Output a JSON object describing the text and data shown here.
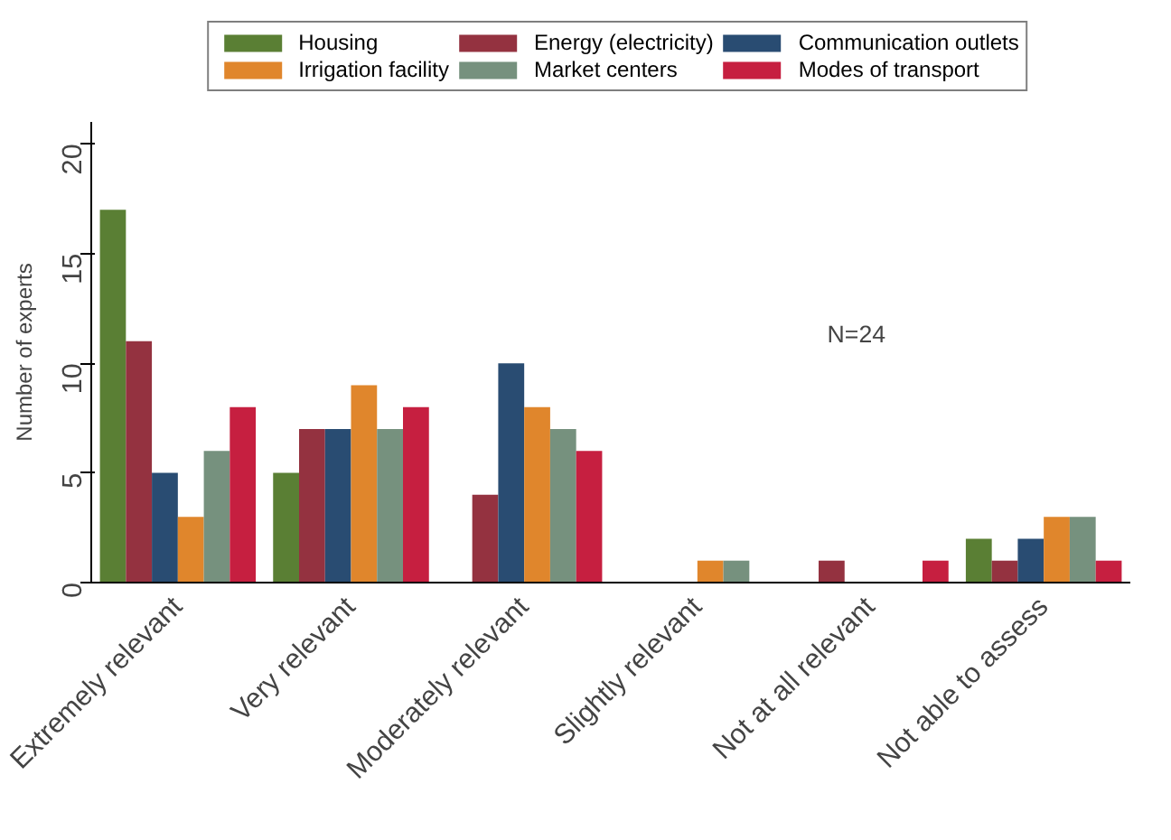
{
  "chart_data": {
    "type": "bar",
    "ylabel": "Number of experts",
    "categories": [
      "Extremely relevant",
      "Very relevant",
      "Moderately relevant",
      "Slightly relevant",
      "Not at all relevant",
      "Not able to assess"
    ],
    "series": [
      {
        "name": "Housing",
        "color": "#5a7f34",
        "values": [
          17,
          5,
          0,
          0,
          0,
          2
        ]
      },
      {
        "name": "Energy (electricity)",
        "color": "#943240",
        "values": [
          11,
          7,
          4,
          0,
          1,
          1
        ]
      },
      {
        "name": "Communication outlets",
        "color": "#294c72",
        "values": [
          5,
          7,
          10,
          0,
          0,
          2
        ]
      },
      {
        "name": "Irrigation facility",
        "color": "#e0862c",
        "values": [
          3,
          9,
          8,
          1,
          0,
          3
        ]
      },
      {
        "name": "Market centers",
        "color": "#76917e",
        "values": [
          6,
          7,
          7,
          1,
          0,
          3
        ]
      },
      {
        "name": "Modes of transport",
        "color": "#c61f40",
        "values": [
          8,
          8,
          6,
          0,
          1,
          1
        ]
      }
    ],
    "ylim": [
      0,
      21
    ],
    "yticks": [
      0,
      5,
      10,
      15,
      20
    ],
    "grid": false,
    "legend": "top",
    "annotations": [
      "N=24"
    ]
  }
}
